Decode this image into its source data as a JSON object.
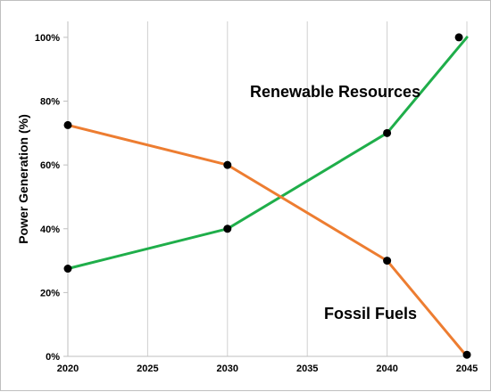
{
  "chart_data": {
    "type": "line",
    "title": "",
    "xlabel": "",
    "ylabel": "Power Generation (%)",
    "xlim": [
      2020,
      2045
    ],
    "ylim": [
      0,
      105
    ],
    "x_ticks": [
      "2020",
      "2025",
      "2030",
      "2035",
      "2040",
      "2045"
    ],
    "y_ticks": [
      "0%",
      "20%",
      "40%",
      "60%",
      "80%",
      "100%"
    ],
    "grid": "vertical",
    "annotations": [
      "Renewable Resources",
      "Fossil Fuels"
    ],
    "series": [
      {
        "name": "Renewable Resources",
        "color": "#1fae4a",
        "line": [
          {
            "x": 2020,
            "y": 27.5
          },
          {
            "x": 2030,
            "y": 40
          },
          {
            "x": 2040,
            "y": 70
          },
          {
            "x": 2045,
            "y": 100
          }
        ],
        "points": [
          {
            "x": 2020,
            "y": 27.5
          },
          {
            "x": 2030,
            "y": 40
          },
          {
            "x": 2040,
            "y": 70
          },
          {
            "x": 2044.5,
            "y": 100
          }
        ]
      },
      {
        "name": "Fossil Fuels",
        "color": "#ed7d31",
        "line": [
          {
            "x": 2020,
            "y": 72.5
          },
          {
            "x": 2030,
            "y": 60
          },
          {
            "x": 2040,
            "y": 30
          },
          {
            "x": 2045,
            "y": 0
          }
        ],
        "points": [
          {
            "x": 2020,
            "y": 72.5
          },
          {
            "x": 2030,
            "y": 60
          },
          {
            "x": 2040,
            "y": 30
          },
          {
            "x": 2045,
            "y": 0.5
          }
        ]
      }
    ]
  }
}
